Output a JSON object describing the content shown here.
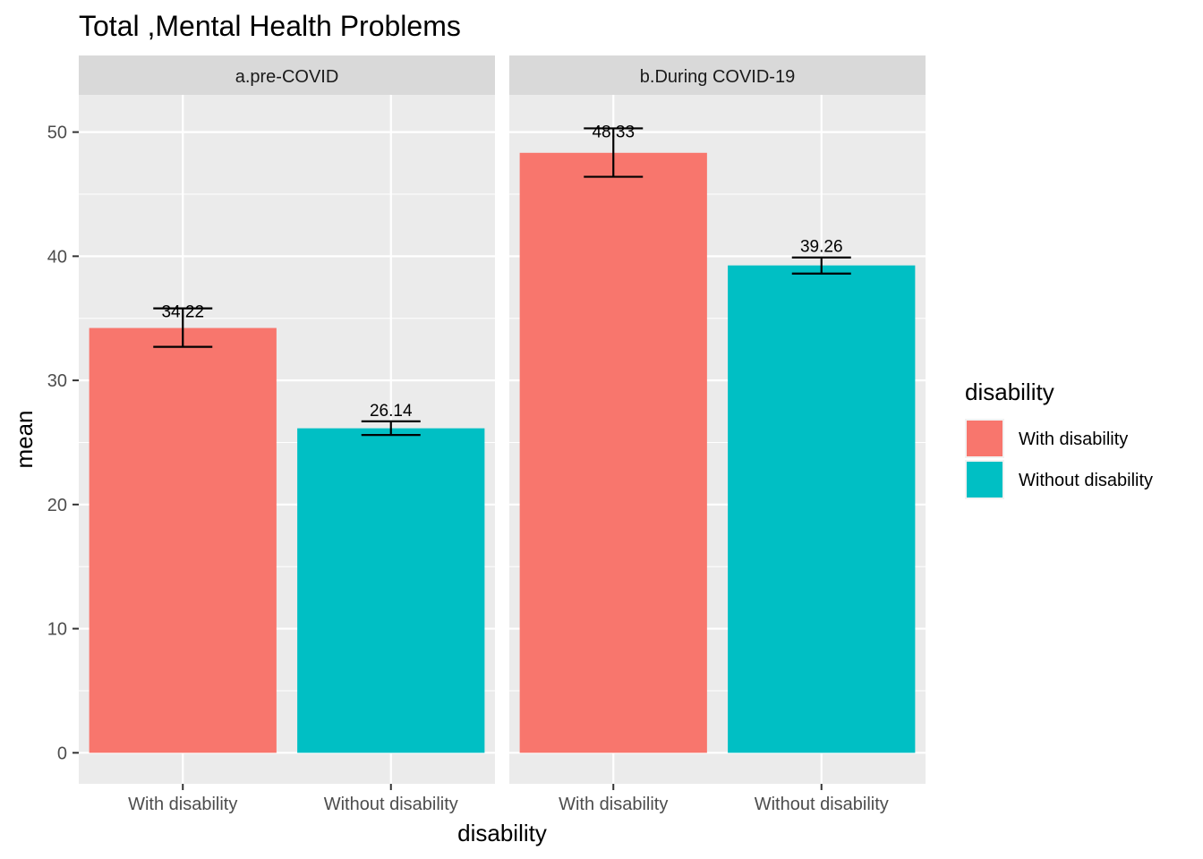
{
  "chart_data": {
    "type": "bar",
    "title": "Total ,Mental Health Problems",
    "xlabel": "disability",
    "ylabel": "mean",
    "ylim": [
      -2.5,
      53
    ],
    "yticks": [
      0,
      10,
      20,
      30,
      40,
      50
    ],
    "categories": [
      "With disability",
      "Without disability"
    ],
    "grid": true,
    "legend": {
      "title": "disability",
      "position": "right",
      "items": [
        {
          "label": "With disability",
          "color": "#F8766D"
        },
        {
          "label": "Without disability",
          "color": "#00BFC4"
        }
      ]
    },
    "panels": [
      {
        "label": "a.pre-COVID",
        "values": [
          34.22,
          26.14
        ],
        "value_labels": [
          "34.22",
          "26.14"
        ],
        "error_lower": [
          32.7,
          25.6
        ],
        "error_upper": [
          35.8,
          26.7
        ]
      },
      {
        "label": "b.During COVID-19",
        "values": [
          48.33,
          39.26
        ],
        "value_labels": [
          "48.33",
          "39.26"
        ],
        "error_lower": [
          46.4,
          38.6
        ],
        "error_upper": [
          50.3,
          39.9
        ]
      }
    ]
  }
}
